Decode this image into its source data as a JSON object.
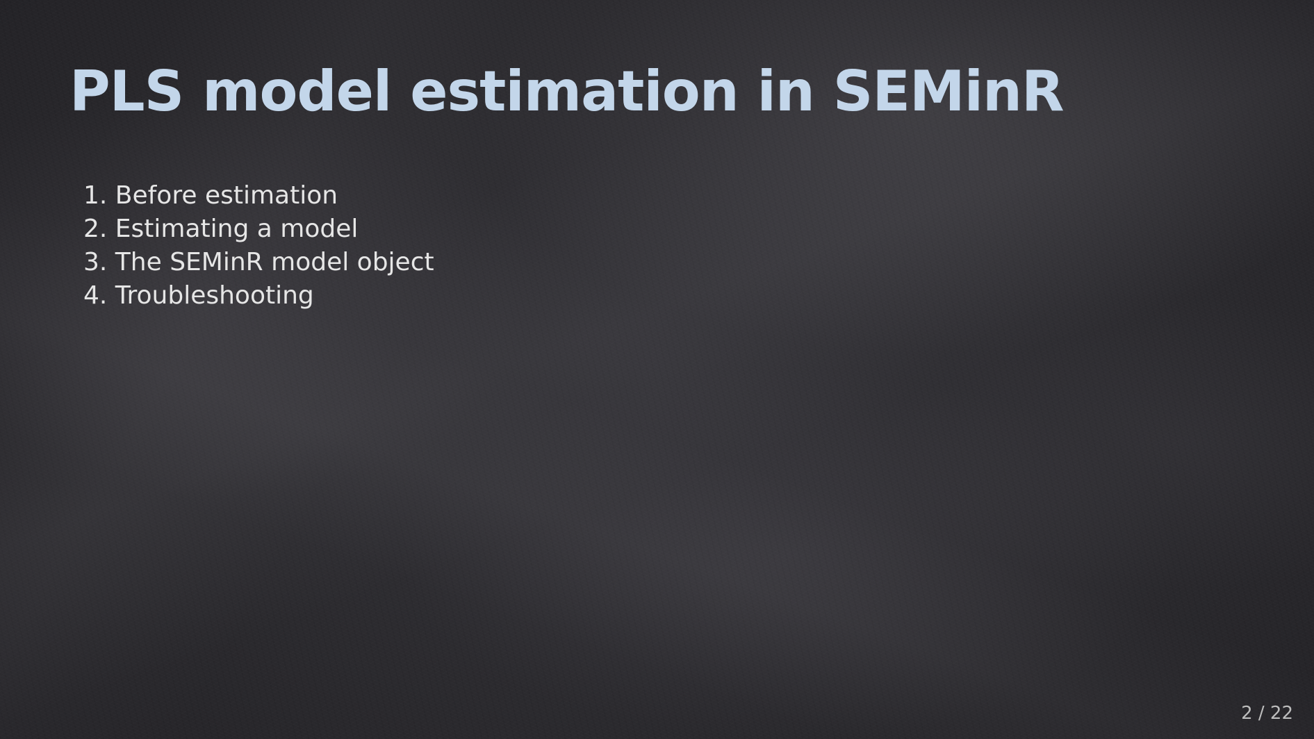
{
  "slide": {
    "title": "PLS model estimation in SEMinR",
    "outline": [
      "1. Before estimation",
      "2. Estimating a model",
      "3. The SEMinR model object",
      "4. Troubleshooting"
    ],
    "page_number": "2 / 22"
  },
  "colors": {
    "background": "#2b2a2c",
    "title": "#c3d6ea",
    "body_text": "#e6e6e6",
    "page_number": "#bdbdbd"
  }
}
